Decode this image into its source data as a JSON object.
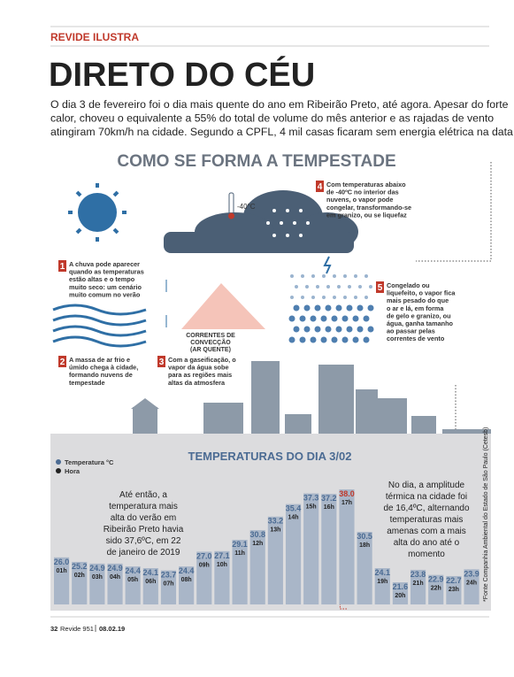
{
  "header": {
    "section": "REVIDE ILUSTRA",
    "title": "DIRETO DO CÉU",
    "intro": [
      "O dia 3 de fevereiro foi o dia mais quente do ano em Ribeirão Preto, até agora. Apesar do forte",
      "calor, choveu o equivalente a 55% do total de volume do mês anterior e as rajadas de vento",
      "atingiram 70km/h na cidade. Segundo a CPFL, 4 mil casas ficaram sem energia elétrica na data"
    ]
  },
  "infographic": {
    "title": "COMO SE FORMA A TEMPESTADE",
    "cloud_temperature": "-40°C",
    "convection": [
      "CORRENTES DE",
      "CONVECÇÃO",
      "(AR QUENTE)"
    ],
    "steps": [
      {
        "number": "1",
        "lines": [
          "A chuva pode aparecer",
          "quando as temperaturas",
          "estão altas e o tempo",
          "muito seco: um cenário",
          "muito comum no verão"
        ]
      },
      {
        "number": "2",
        "lines": [
          "A massa de ar frio e",
          "úmido chega à cidade,",
          "formando nuvens de",
          "tempestade"
        ]
      },
      {
        "number": "3",
        "lines": [
          "Com a gaseificação, o",
          "vapor da água sobe",
          "para as regiões mais",
          "altas da atmosfera"
        ]
      },
      {
        "number": "4",
        "lines": [
          "Com temperaturas abaixo",
          "de -40ºC no interior das",
          "nuvens, o vapor pode",
          "congelar, transformando-se",
          "em granizo, ou se liquefaz"
        ]
      },
      {
        "number": "5",
        "lines": [
          "Congelado ou",
          "liquefeito, o vapor fica",
          "mais pesado do que",
          "o ar e lá, em forma",
          "de gelo e granizo, ou",
          "água, ganha tamanho",
          "ao passar pelas",
          "correntes de vento"
        ]
      }
    ]
  },
  "chart_data": {
    "type": "bar",
    "title": "TEMPERATURAS DO DIA 3/02",
    "category_legend": "Hora",
    "highlight_color": "#c0392b",
    "categories": [
      "01h",
      "02h",
      "03h",
      "04h",
      "05h",
      "06h",
      "07h",
      "08h",
      "09h",
      "10h",
      "11h",
      "12h",
      "13h",
      "14h",
      "15h",
      "16h",
      "17h",
      "18h",
      "19h",
      "20h",
      "21h",
      "22h",
      "23h",
      "24h"
    ],
    "series": [
      {
        "name": "Temperatura °C",
        "color": "#a9b6c8",
        "values": [
          26,
          25.2,
          24.9,
          24.9,
          24.4,
          24.1,
          23.7,
          24.4,
          27,
          27.1,
          29.1,
          30.8,
          33.2,
          35.4,
          37.3,
          37.2,
          38,
          30.5,
          24.1,
          21.6,
          23.8,
          22.9,
          22.7,
          23.9
        ],
        "value_labels": [
          "26.0",
          "25.2",
          "24.9",
          "24.9",
          "24.4",
          "24.1",
          "23.7",
          "24.4",
          "27.0",
          "27.1",
          "29.1",
          "30.8",
          "33.2",
          "35.4",
          "37.3",
          "37.2",
          "38.0",
          "30.5",
          "24.1",
          "21.6",
          "23.8",
          "22.9",
          "22.7",
          "23.9"
        ]
      }
    ],
    "annotations": [
      [
        "Até então, a",
        "temperatura mais",
        "alta do verão em",
        "Ribeirão Preto havia",
        "sido 37,6ºC, em 22",
        "de janeiro de 2019"
      ],
      [
        "No dia, a amplitude",
        "térmica na cidade foi",
        "de 16,4ºC, alternando",
        "temperaturas mais",
        "amenas com a mais",
        "alta do ano até o",
        "momento"
      ]
    ],
    "source": "*Fonte Companhia Ambiental do Estado de São Paulo (Cetesb)"
  },
  "footer": {
    "page": "32",
    "magazine": "Revide 951",
    "date": "08.02.19"
  }
}
